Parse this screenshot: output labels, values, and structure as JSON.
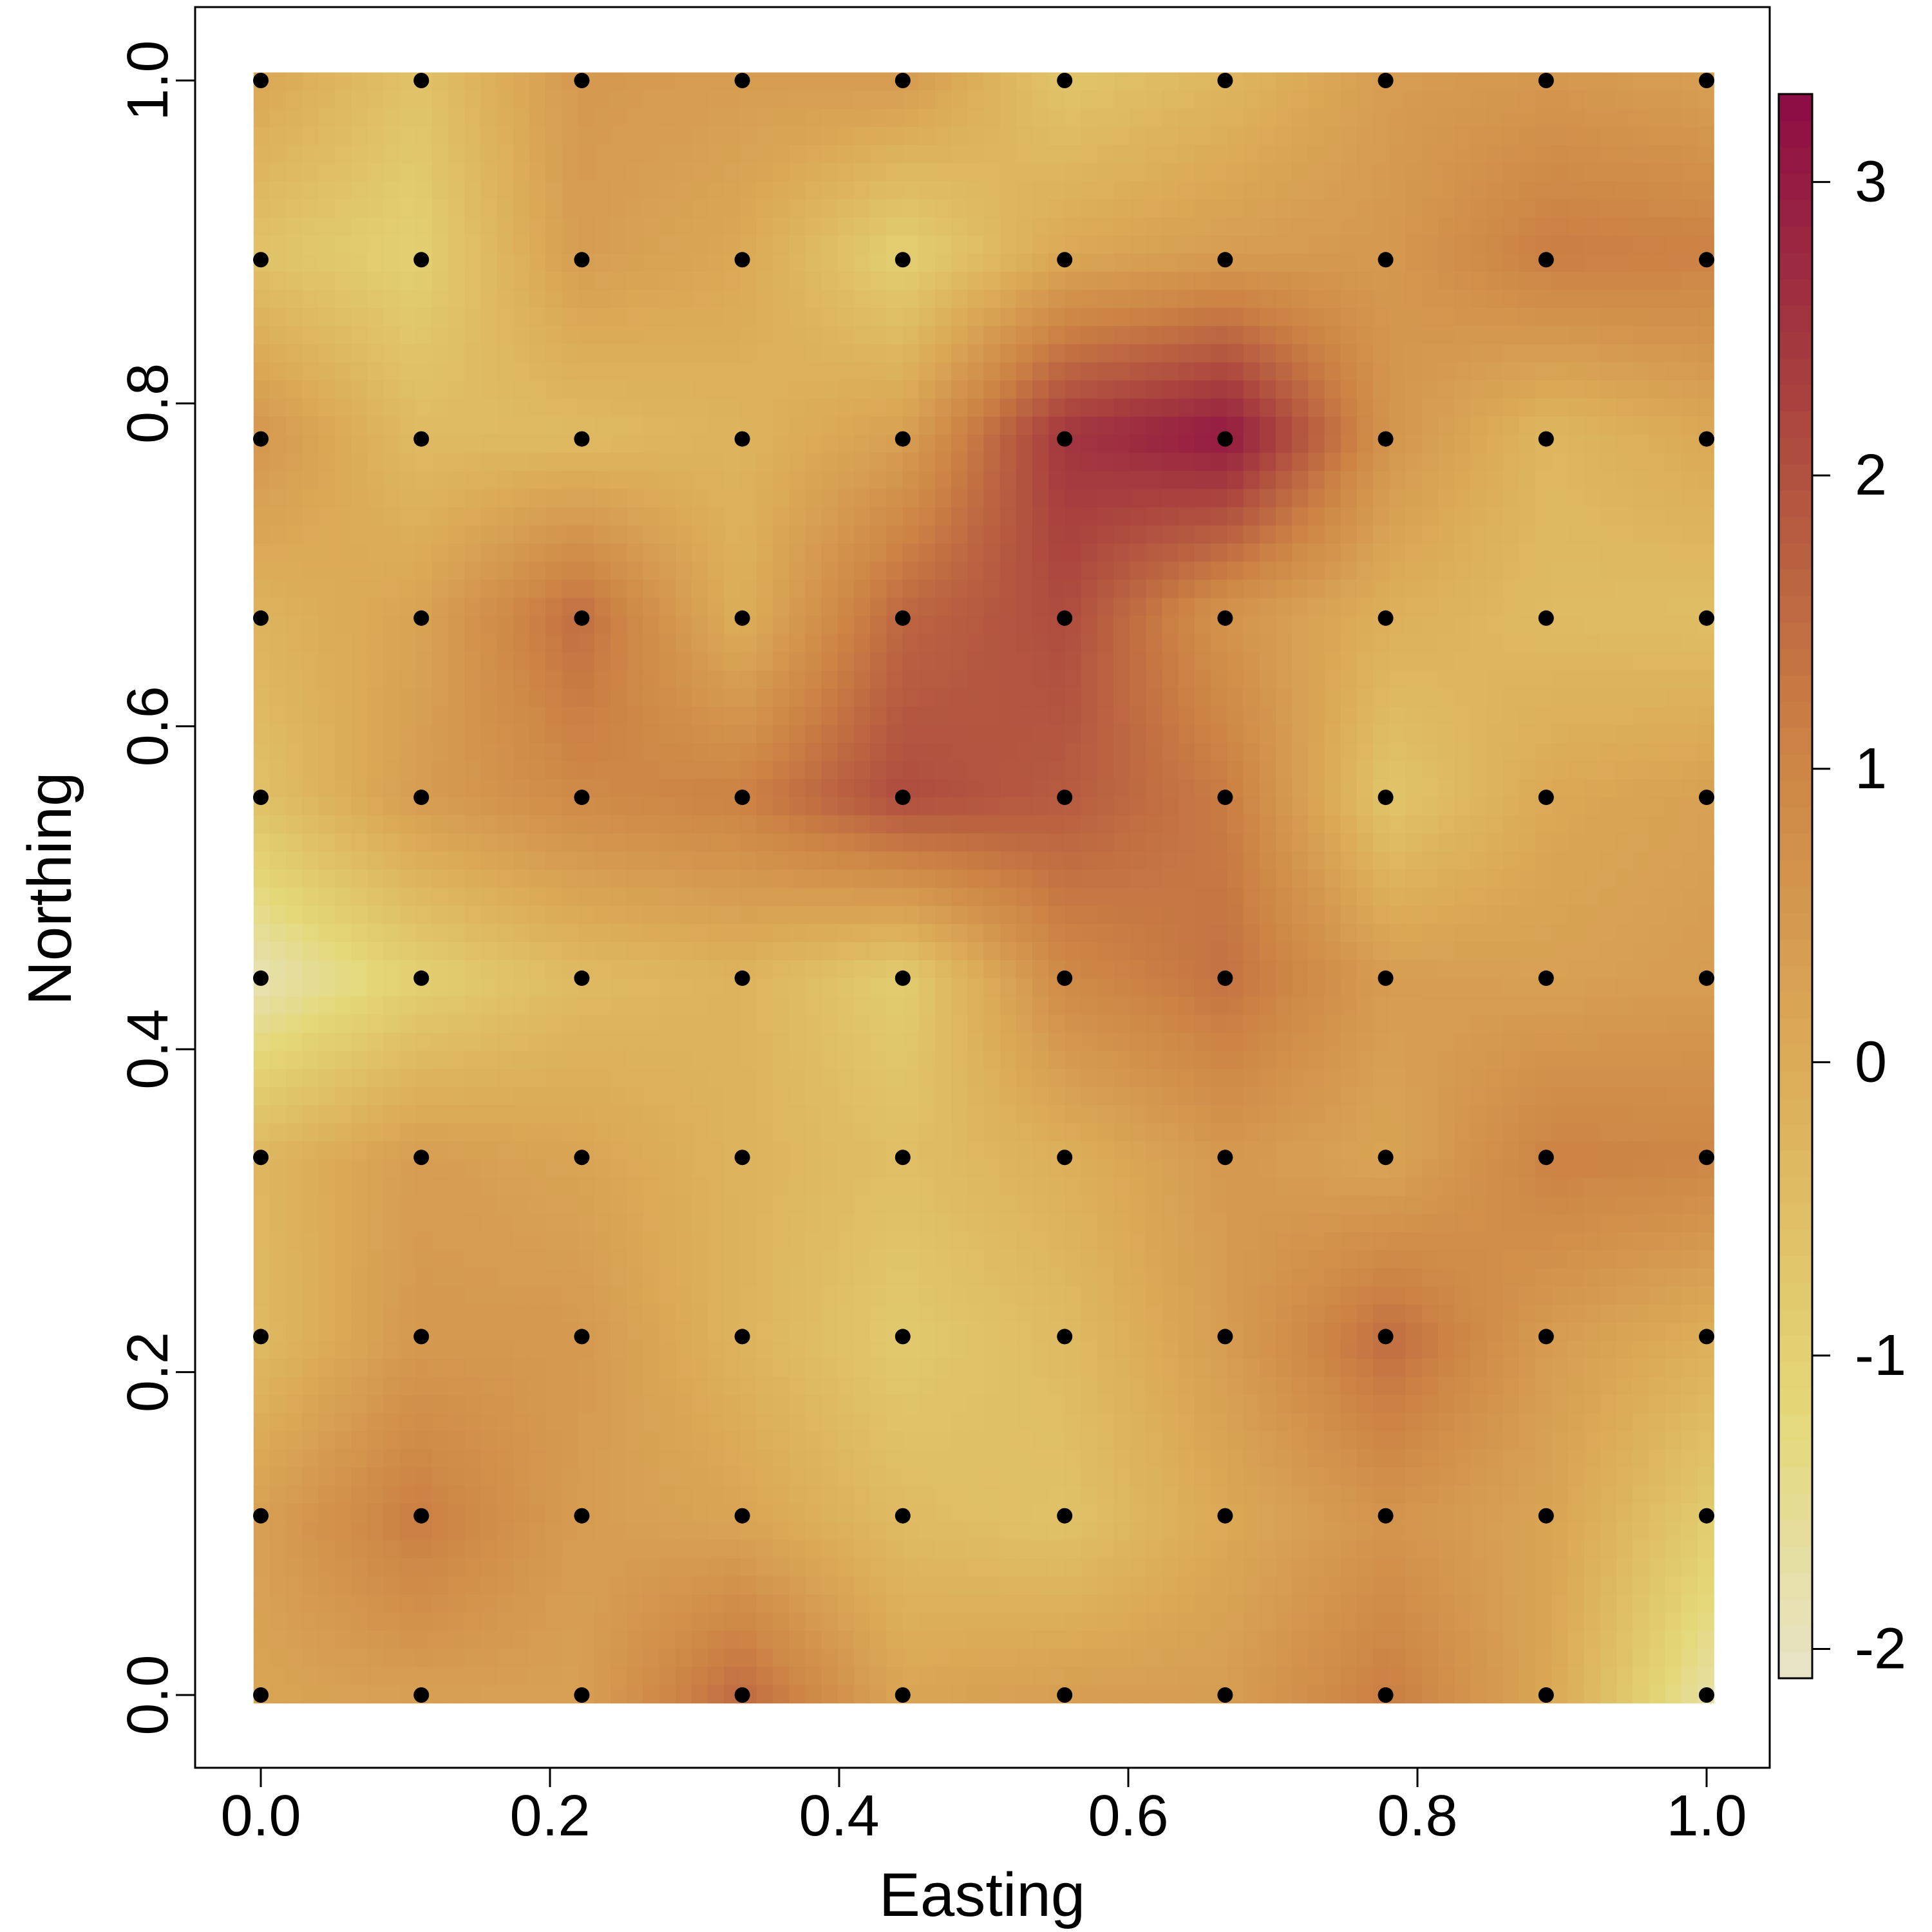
{
  "chart_data": {
    "type": "heatmap",
    "title": "",
    "xlabel": "Easting",
    "ylabel": "Northing",
    "xlim": [
      -0.044,
      1.044
    ],
    "ylim": [
      -0.038,
      1.044
    ],
    "x_ticks": [
      "0.0",
      "0.2",
      "0.4",
      "0.6",
      "0.8",
      "1.0"
    ],
    "y_ticks": [
      "0.0",
      "0.2",
      "0.4",
      "0.6",
      "0.8",
      "1.0"
    ],
    "grid_x": [
      0,
      0.111,
      0.222,
      0.333,
      0.444,
      0.556,
      0.667,
      0.778,
      0.889,
      1.0
    ],
    "grid_y": [
      0,
      0.111,
      0.222,
      0.333,
      0.444,
      0.556,
      0.667,
      0.778,
      0.889,
      1.0
    ],
    "values_by_row_from_bottom": [
      [
        0.2,
        0.3,
        0.3,
        1.6,
        0.2,
        0.4,
        0.4,
        1.2,
        0.1,
        -1.8
      ],
      [
        0.3,
        1.2,
        0.4,
        0.2,
        -0.4,
        -0.6,
        0.1,
        0.6,
        0.2,
        -0.9
      ],
      [
        -0.4,
        0.5,
        0.5,
        -0.2,
        -0.8,
        -0.4,
        0.4,
        1.5,
        0.4,
        -0.1
      ],
      [
        -0.3,
        0.4,
        0.2,
        -0.2,
        -0.5,
        -0.1,
        0.5,
        0.2,
        1.1,
        1.0
      ],
      [
        -1.9,
        -1.0,
        -0.4,
        -0.2,
        -0.9,
        0.9,
        1.4,
        0.4,
        0.3,
        0.4
      ],
      [
        -0.6,
        0.4,
        0.9,
        1.1,
        2.1,
        1.8,
        1.2,
        -0.7,
        0.1,
        0.3
      ],
      [
        -0.2,
        0.2,
        1.5,
        -0.1,
        1.6,
        2.1,
        0.6,
        -0.1,
        -0.4,
        -0.5
      ],
      [
        0.6,
        -0.4,
        -0.4,
        -0.2,
        0.3,
        2.5,
        3.1,
        0.6,
        -0.3,
        0.1
      ],
      [
        -0.6,
        -1.0,
        0.4,
        0.1,
        -1.0,
        0.1,
        0.4,
        0.5,
        1.2,
        1.1
      ],
      [
        0.2,
        -0.6,
        0.5,
        0.4,
        0.5,
        -0.7,
        -0.3,
        0.4,
        0.5,
        0.3
      ]
    ],
    "points_note": "grid points marked at every grid_x/grid_y intersection",
    "colorbar": {
      "range": [
        -2.1,
        3.3
      ],
      "ticks": [
        "-2",
        "-1",
        "0",
        "1",
        "2",
        "3"
      ],
      "tick_values": [
        -2,
        -1,
        0,
        1,
        2,
        3
      ],
      "colors": [
        "#e8e4c8",
        "#e4d878",
        "#dcac58",
        "#cc8244",
        "#a8403e",
        "#8c0c44"
      ],
      "color_stops": [
        -2.1,
        -1.2,
        0.0,
        1.1,
        2.3,
        3.3
      ]
    },
    "grid": false,
    "legend": "right"
  }
}
